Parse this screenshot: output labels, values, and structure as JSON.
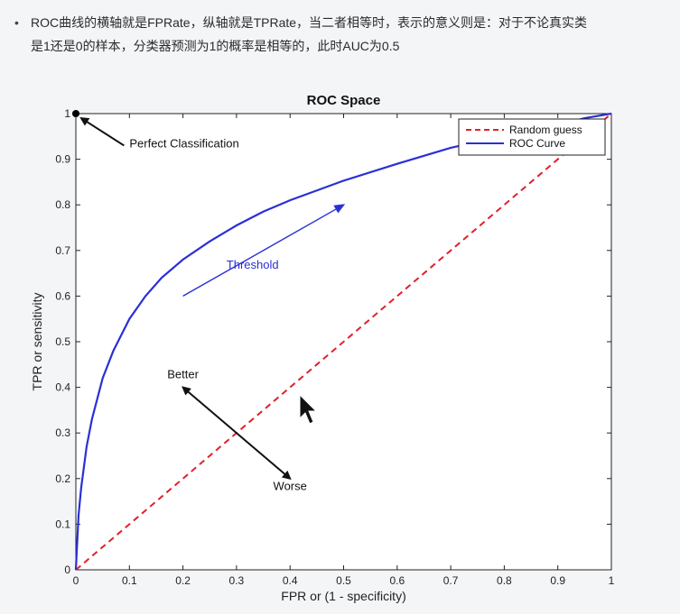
{
  "note": {
    "bullet": "•",
    "line1": "ROC曲线的横轴就是FPRate，纵轴就是TPRate，当二者相等时，表示的意义则是：对于不论真实类",
    "line2": "是1还是0的样本，分类器预测为1的概率是相等的，此时AUC为0.5"
  },
  "chart_data": {
    "type": "line",
    "title": "ROC Space",
    "xlabel": "FPR or (1 - specificity)",
    "ylabel": "TPR or sensitivity",
    "xlim": [
      0,
      1
    ],
    "ylim": [
      0,
      1
    ],
    "xticks": [
      0,
      0.1,
      0.2,
      0.3,
      0.4,
      0.5,
      0.6,
      0.7,
      0.8,
      0.9,
      1
    ],
    "yticks": [
      0,
      0.1,
      0.2,
      0.3,
      0.4,
      0.5,
      0.6,
      0.7,
      0.8,
      0.9,
      1
    ],
    "xtick_labels": [
      "0",
      "0.1",
      "0.2",
      "0.3",
      "0.4",
      "0.5",
      "0.6",
      "0.7",
      "0.8",
      "0.9",
      "1"
    ],
    "ytick_labels": [
      "0",
      "0.1",
      "0.2",
      "0.3",
      "0.4",
      "0.5",
      "0.6",
      "0.7",
      "0.8",
      "0.9",
      "1"
    ],
    "grid": false,
    "legend_position": "top-right",
    "series": [
      {
        "name": "Random guess",
        "color": "#e0202a",
        "style": "dashed",
        "x": [
          0,
          1
        ],
        "y": [
          0,
          1
        ]
      },
      {
        "name": "ROC Curve",
        "color": "#2a2fd6",
        "style": "solid",
        "x": [
          0,
          0.005,
          0.01,
          0.02,
          0.03,
          0.05,
          0.07,
          0.1,
          0.13,
          0.16,
          0.2,
          0.25,
          0.3,
          0.35,
          0.4,
          0.5,
          0.6,
          0.7,
          0.8,
          0.9,
          0.95,
          1
        ],
        "y": [
          0,
          0.12,
          0.18,
          0.27,
          0.33,
          0.42,
          0.48,
          0.55,
          0.6,
          0.64,
          0.68,
          0.72,
          0.755,
          0.785,
          0.81,
          0.853,
          0.89,
          0.925,
          0.95,
          0.975,
          0.99,
          1
        ]
      }
    ],
    "annotations": [
      {
        "text": "Perfect Classification",
        "x": 0.09,
        "y": 0.93,
        "arrow_from": [
          0.09,
          0.93
        ],
        "arrow_to": [
          0.01,
          0.99
        ],
        "color": "#111111"
      },
      {
        "text": "Threshold",
        "x": 0.33,
        "y": 0.66,
        "arrow_from": [
          0.2,
          0.6
        ],
        "arrow_to": [
          0.5,
          0.8
        ],
        "color": "#2a2fd6"
      },
      {
        "text": "Better",
        "x": 0.2,
        "y": 0.42,
        "arrow_from": [
          0.3,
          0.3
        ],
        "arrow_to": [
          0.2,
          0.4
        ],
        "color": "#111111"
      },
      {
        "text": "Worse",
        "x": 0.4,
        "y": 0.175,
        "arrow_from": [
          0.3,
          0.3
        ],
        "arrow_to": [
          0.4,
          0.2
        ],
        "color": "#111111"
      }
    ],
    "markers": [
      {
        "name": "perfect-point",
        "x": 0,
        "y": 1,
        "color": "#000000"
      }
    ]
  }
}
